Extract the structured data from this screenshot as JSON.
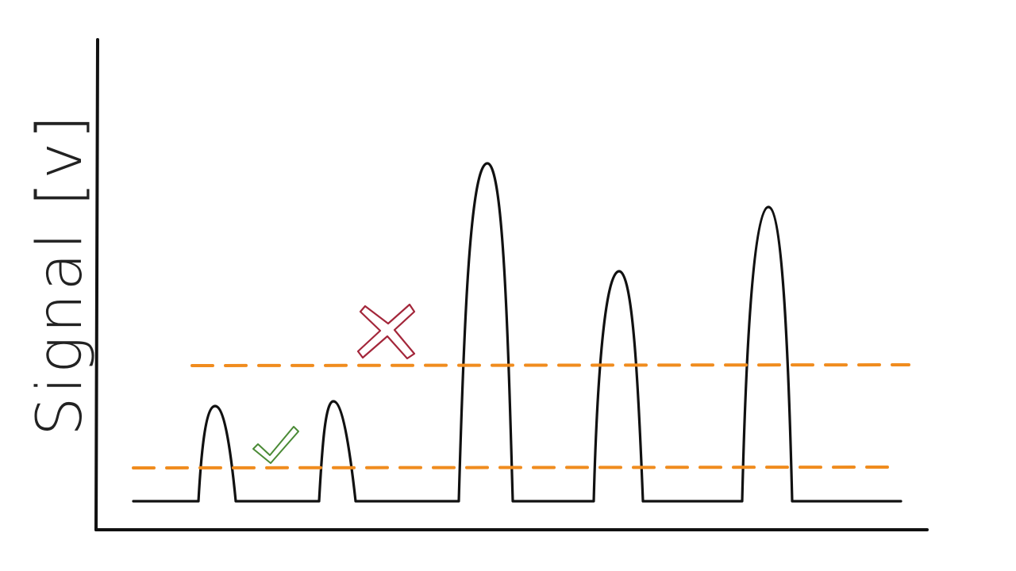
{
  "y_axis_label": "Signal [v]",
  "thresholds": [
    {
      "role": "low",
      "status": "accepted",
      "status_icon": "check-icon",
      "color": "#f08c1e"
    },
    {
      "role": "high",
      "status": "rejected",
      "status_icon": "cross-icon",
      "color": "#f08c1e"
    }
  ],
  "colors": {
    "signal": "#111111",
    "threshold": "#f08c1e",
    "accepted": "#4a8a35",
    "rejected": "#a3263a"
  }
}
